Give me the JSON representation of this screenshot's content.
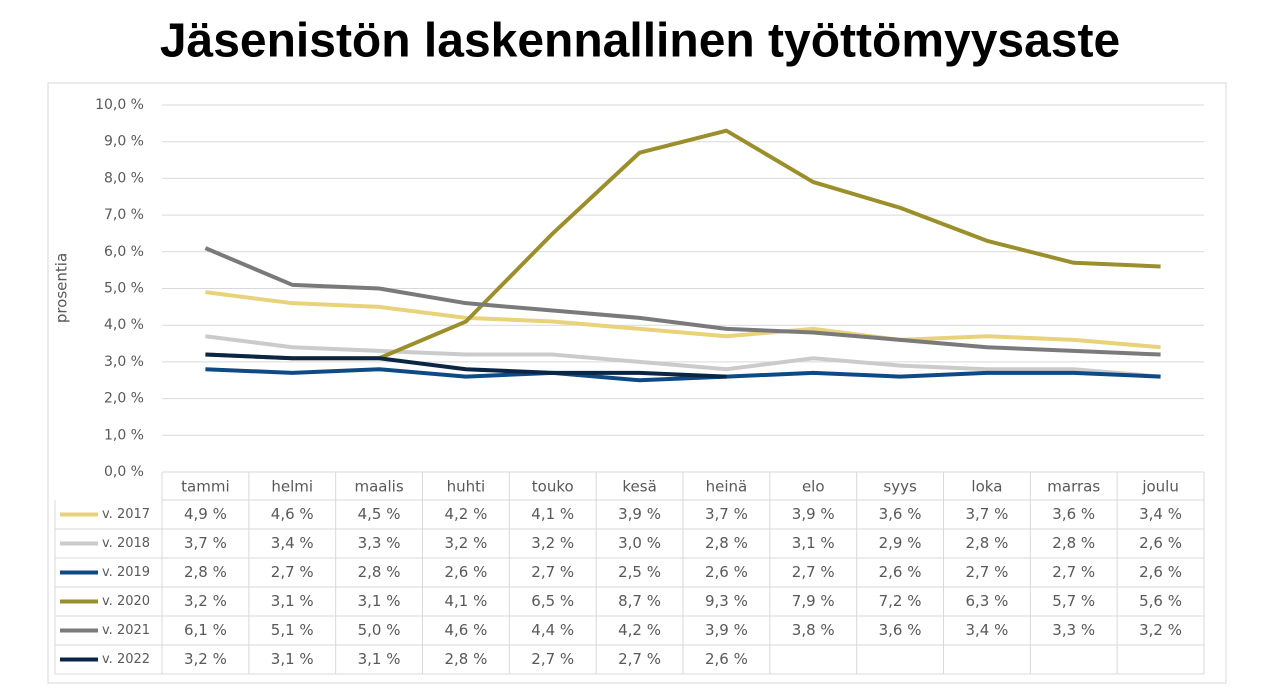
{
  "chart_data": {
    "type": "line",
    "title": "Jäsenistön laskennallinen työttömyysaste",
    "y_label": "prosentia",
    "categories": [
      "tammi",
      "helmi",
      "maalis",
      "huhti",
      "touko",
      "kesä",
      "heinä",
      "elo",
      "syys",
      "loka",
      "marras",
      "joulu"
    ],
    "ylim": [
      0,
      10
    ],
    "yticks": [
      {
        "value": 0,
        "label": "0,0 %"
      },
      {
        "value": 1,
        "label": "1,0 %"
      },
      {
        "value": 2,
        "label": "2,0 %"
      },
      {
        "value": 3,
        "label": "3,0 %"
      },
      {
        "value": 4,
        "label": "4,0 %"
      },
      {
        "value": 5,
        "label": "5,0 %"
      },
      {
        "value": 6,
        "label": "6,0 %"
      },
      {
        "value": 7,
        "label": "7,0 %"
      },
      {
        "value": 8,
        "label": "8,0 %"
      },
      {
        "value": 9,
        "label": "9,0 %"
      },
      {
        "value": 10,
        "label": "10,0 %"
      }
    ],
    "grid": true,
    "series": [
      {
        "name": "v. 2017",
        "color": "#e8d27a",
        "values": [
          4.9,
          4.6,
          4.5,
          4.2,
          4.1,
          3.9,
          3.7,
          3.9,
          3.6,
          3.7,
          3.6,
          3.4
        ],
        "value_labels": [
          "4,9 %",
          "4,6 %",
          "4,5 %",
          "4,2 %",
          "4,1 %",
          "3,9 %",
          "3,7 %",
          "3,9 %",
          "3,6 %",
          "3,7 %",
          "3,6 %",
          "3,4 %"
        ]
      },
      {
        "name": "v. 2018",
        "color": "#cbcbcb",
        "values": [
          3.7,
          3.4,
          3.3,
          3.2,
          3.2,
          3.0,
          2.8,
          3.1,
          2.9,
          2.8,
          2.8,
          2.6
        ],
        "value_labels": [
          "3,7 %",
          "3,4 %",
          "3,3 %",
          "3,2 %",
          "3,2 %",
          "3,0 %",
          "2,8 %",
          "3,1 %",
          "2,9 %",
          "2,8 %",
          "2,8 %",
          "2,6 %"
        ]
      },
      {
        "name": "v. 2019",
        "color": "#0e4a86",
        "values": [
          2.8,
          2.7,
          2.8,
          2.6,
          2.7,
          2.5,
          2.6,
          2.7,
          2.6,
          2.7,
          2.7,
          2.6
        ],
        "value_labels": [
          "2,8 %",
          "2,7 %",
          "2,8 %",
          "2,6 %",
          "2,7 %",
          "2,5 %",
          "2,6 %",
          "2,7 %",
          "2,6 %",
          "2,7 %",
          "2,7 %",
          "2,6 %"
        ]
      },
      {
        "name": "v. 2020",
        "color": "#9b8f2c",
        "values": [
          3.2,
          3.1,
          3.1,
          4.1,
          6.5,
          8.7,
          9.3,
          7.9,
          7.2,
          6.3,
          5.7,
          5.6
        ],
        "value_labels": [
          "3,2 %",
          "3,1 %",
          "3,1 %",
          "4,1 %",
          "6,5 %",
          "8,7 %",
          "9,3 %",
          "7,9 %",
          "7,2 %",
          "6,3 %",
          "5,7 %",
          "5,6 %"
        ]
      },
      {
        "name": "v. 2021",
        "color": "#7a7a7a",
        "values": [
          6.1,
          5.1,
          5.0,
          4.6,
          4.4,
          4.2,
          3.9,
          3.8,
          3.6,
          3.4,
          3.3,
          3.2
        ],
        "value_labels": [
          "6,1 %",
          "5,1 %",
          "5,0 %",
          "4,6 %",
          "4,4 %",
          "4,2 %",
          "3,9 %",
          "3,8 %",
          "3,6 %",
          "3,4 %",
          "3,3 %",
          "3,2 %"
        ]
      },
      {
        "name": "v. 2022",
        "color": "#0b2545",
        "values": [
          3.2,
          3.1,
          3.1,
          2.8,
          2.7,
          2.7,
          2.6,
          null,
          null,
          null,
          null,
          null
        ],
        "value_labels": [
          "3,2 %",
          "3,1 %",
          "3,1 %",
          "2,8 %",
          "2,7 %",
          "2,7 %",
          "2,6 %",
          null,
          null,
          null,
          null,
          null
        ]
      }
    ]
  }
}
